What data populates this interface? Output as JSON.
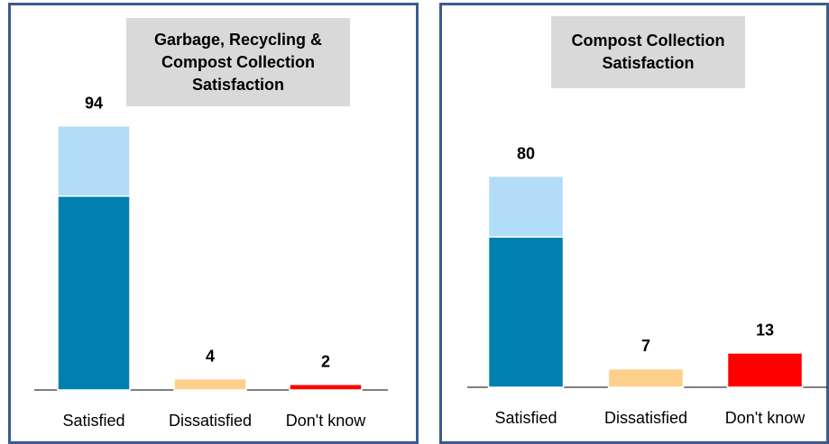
{
  "chart_data": [
    {
      "type": "stacked_bar",
      "title": "Garbage, Recycling & Compost Collection Satisfaction",
      "categories": [
        "Satisfied",
        "Dissatisfied",
        "Don't know"
      ],
      "series": [
        {
          "color": "#0080b0",
          "values": [
            69,
            null,
            null
          ]
        },
        {
          "colors": [
            "#b3dcf8",
            "#fdd08c",
            "#ff0000"
          ],
          "values": [
            25,
            4,
            2
          ]
        }
      ],
      "totals": [
        94,
        4,
        2
      ],
      "ylim": [
        0,
        100
      ]
    },
    {
      "type": "stacked_bar",
      "title": "Compost Collection Satisfaction",
      "categories": [
        "Satisfied",
        "Dissatisfied",
        "Don't know"
      ],
      "series": [
        {
          "color": "#0080b0",
          "values": [
            57,
            null,
            null
          ]
        },
        {
          "colors": [
            "#b3dcf8",
            "#fdd08c",
            "#ff0000"
          ],
          "values": [
            23,
            7,
            13
          ]
        }
      ],
      "totals": [
        80,
        7,
        13
      ],
      "ylim": [
        0,
        100
      ]
    }
  ]
}
